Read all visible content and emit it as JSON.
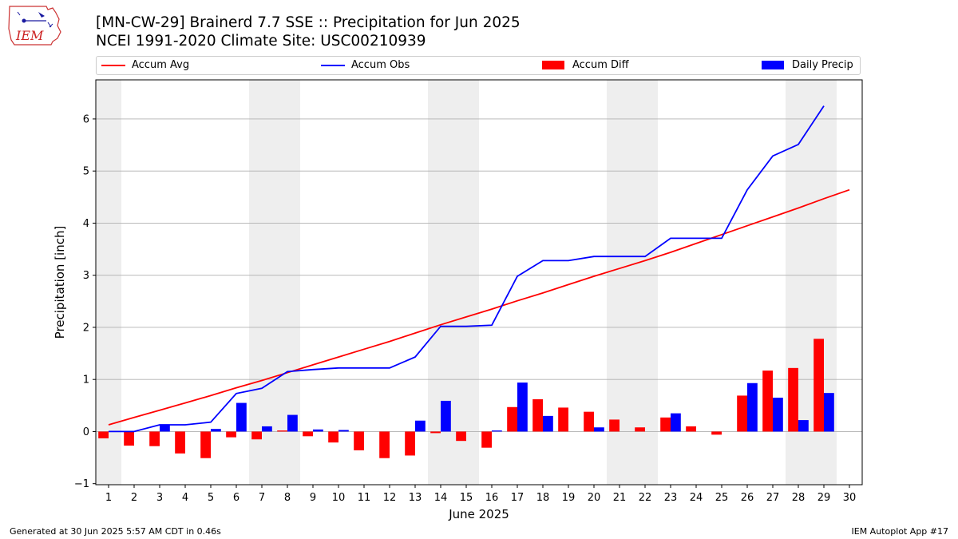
{
  "logo": {
    "text": "IEM"
  },
  "title": {
    "line1": "[MN-CW-29] Brainerd 7.7 SSE :: Precipitation for Jun 2025",
    "line2": "NCEI 1991-2020 Climate Site: USC00210939"
  },
  "footer": {
    "left": "Generated at 30 Jun 2025 5:57 AM CDT in 0.46s",
    "right": "IEM Autoplot App #17"
  },
  "colors": {
    "accum_avg": "#ff0000",
    "accum_obs": "#0000ff",
    "accum_diff": "#ff0000",
    "daily_precip": "#0000ff",
    "weekend_shade": "#eeeeee",
    "grid": "#b0b0b0"
  },
  "chart_data": {
    "type": "bar",
    "xlabel": "June 2025",
    "ylabel": "Precipitation [inch]",
    "xlim": [
      0.5,
      30.5
    ],
    "ylim": [
      -1.02,
      6.75
    ],
    "x": [
      1,
      2,
      3,
      4,
      5,
      6,
      7,
      8,
      9,
      10,
      11,
      12,
      13,
      14,
      15,
      16,
      17,
      18,
      19,
      20,
      21,
      22,
      23,
      24,
      25,
      26,
      27,
      28,
      29,
      30
    ],
    "y_ticks": [
      -1,
      0,
      1,
      2,
      3,
      4,
      5,
      6
    ],
    "y_tick_labels": [
      "−1",
      "0",
      "1",
      "2",
      "3",
      "4",
      "5",
      "6"
    ],
    "grid": "horizontal",
    "legend_placement": "top",
    "shaded_weekends": [
      [
        0.5,
        1.5
      ],
      [
        6.5,
        8.5
      ],
      [
        13.5,
        15.5
      ],
      [
        20.5,
        22.5
      ],
      [
        27.5,
        29.5
      ]
    ],
    "legend": [
      "Accum Avg",
      "Accum Obs",
      "Accum Diff",
      "Daily Precip"
    ],
    "series": [
      {
        "name": "Accum Avg",
        "kind": "line",
        "values": [
          0.13,
          0.27,
          0.41,
          0.55,
          0.69,
          0.84,
          0.98,
          1.13,
          1.28,
          1.43,
          1.58,
          1.73,
          1.89,
          2.05,
          2.2,
          2.35,
          2.51,
          2.66,
          2.82,
          2.98,
          3.13,
          3.28,
          3.44,
          3.61,
          3.78,
          3.95,
          4.12,
          4.29,
          4.47,
          4.64
        ]
      },
      {
        "name": "Accum Obs",
        "kind": "line",
        "values": [
          0.0,
          0.0,
          0.13,
          0.13,
          0.18,
          0.73,
          0.83,
          1.15,
          1.19,
          1.22,
          1.22,
          1.22,
          1.43,
          2.02,
          2.02,
          2.04,
          2.98,
          3.28,
          3.28,
          3.36,
          3.36,
          3.36,
          3.71,
          3.71,
          3.71,
          4.64,
          5.29,
          5.51,
          6.25,
          null
        ]
      },
      {
        "name": "Accum Diff",
        "kind": "bar",
        "values": [
          -0.13,
          -0.27,
          -0.28,
          -0.42,
          -0.51,
          -0.11,
          -0.15,
          0.02,
          -0.09,
          -0.21,
          -0.36,
          -0.51,
          -0.46,
          -0.03,
          -0.18,
          -0.31,
          0.47,
          0.62,
          0.46,
          0.38,
          0.23,
          0.08,
          0.27,
          0.1,
          -0.06,
          0.69,
          1.17,
          1.22,
          1.78,
          null
        ]
      },
      {
        "name": "Daily Precip",
        "kind": "bar",
        "values": [
          0.0,
          0.0,
          0.13,
          0.0,
          0.05,
          0.55,
          0.1,
          0.32,
          0.04,
          0.03,
          0.0,
          0.0,
          0.21,
          0.59,
          0.0,
          0.02,
          0.94,
          0.3,
          0.0,
          0.08,
          0.0,
          0.0,
          0.35,
          0.0,
          0.0,
          0.93,
          0.65,
          0.22,
          0.74,
          null
        ]
      }
    ]
  }
}
